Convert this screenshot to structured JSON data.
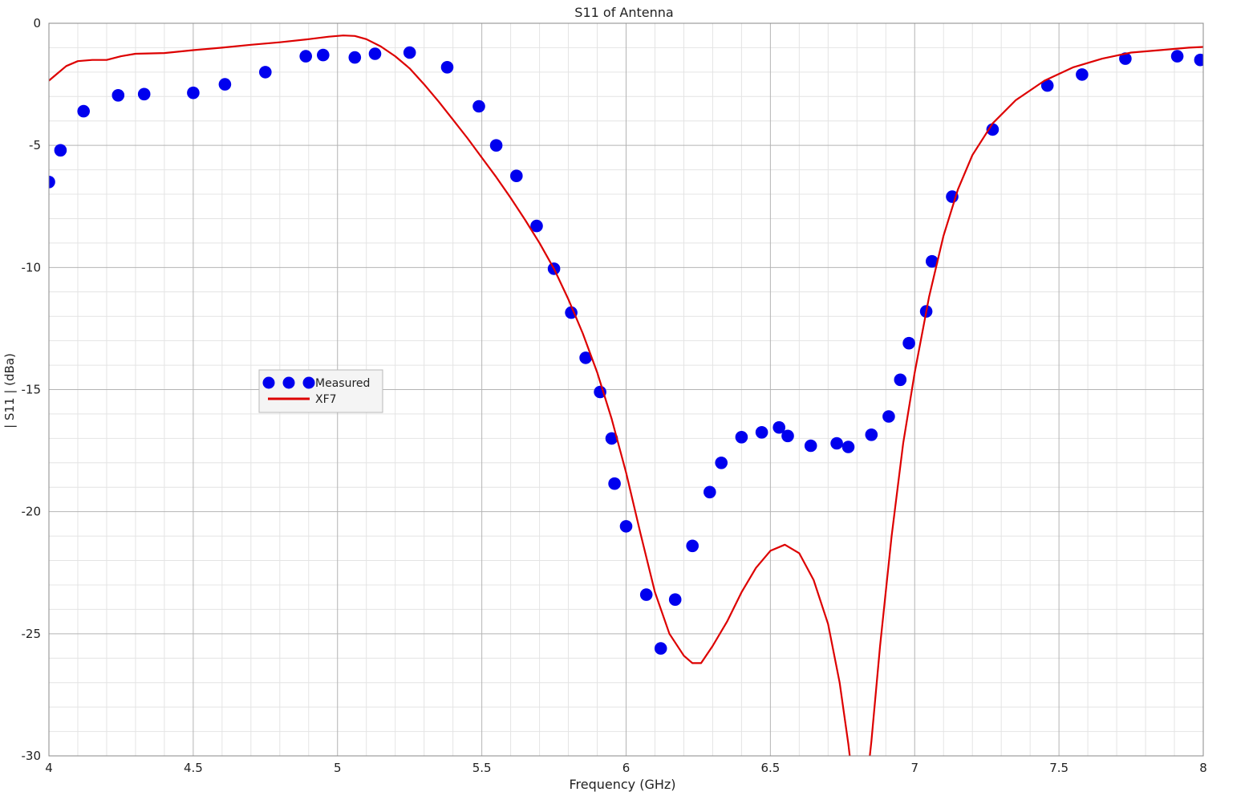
{
  "chart_data": {
    "type": "line",
    "title": "S11 of Antenna",
    "xlabel": "Frequency (GHz)",
    "ylabel": "| S11 | (dBa)",
    "xlim": [
      4,
      8
    ],
    "ylim": [
      -30,
      0
    ],
    "x_ticks": [
      4,
      4.5,
      5,
      5.5,
      6,
      6.5,
      7,
      7.5,
      8
    ],
    "x_tick_labels": [
      "4",
      "4.5",
      "5",
      "5.5",
      "6",
      "6.5",
      "7",
      "7.5",
      "8"
    ],
    "y_ticks": [
      0,
      -5,
      -10,
      -15,
      -20,
      -25,
      -30
    ],
    "y_tick_labels": [
      "0",
      "-5",
      "-10",
      "-15",
      "-20",
      "-25",
      "-30"
    ],
    "grid": true,
    "minor_grid": true,
    "legend_position": "center-left",
    "series": [
      {
        "name": "Measured",
        "style": "markers",
        "color": "#0000ee",
        "points": [
          [
            4.0,
            -6.5
          ],
          [
            4.04,
            -5.2
          ],
          [
            4.12,
            -3.6
          ],
          [
            4.24,
            -2.95
          ],
          [
            4.33,
            -2.9
          ],
          [
            4.5,
            -2.85
          ],
          [
            4.61,
            -2.5
          ],
          [
            4.75,
            -2.0
          ],
          [
            4.89,
            -1.35
          ],
          [
            4.95,
            -1.3
          ],
          [
            5.06,
            -1.4
          ],
          [
            5.13,
            -1.25
          ],
          [
            5.25,
            -1.2
          ],
          [
            5.38,
            -1.8
          ],
          [
            5.49,
            -3.4
          ],
          [
            5.55,
            -5.0
          ],
          [
            5.62,
            -6.25
          ],
          [
            5.69,
            -8.3
          ],
          [
            5.75,
            -10.05
          ],
          [
            5.81,
            -11.85
          ],
          [
            5.86,
            -13.7
          ],
          [
            5.91,
            -15.1
          ],
          [
            5.95,
            -17.0
          ],
          [
            5.96,
            -18.85
          ],
          [
            6.0,
            -20.6
          ],
          [
            6.07,
            -23.4
          ],
          [
            6.12,
            -25.6
          ],
          [
            6.17,
            -23.6
          ],
          [
            6.23,
            -21.4
          ],
          [
            6.29,
            -19.2
          ],
          [
            6.33,
            -18.0
          ],
          [
            6.4,
            -16.95
          ],
          [
            6.47,
            -16.75
          ],
          [
            6.53,
            -16.55
          ],
          [
            6.56,
            -16.9
          ],
          [
            6.64,
            -17.3
          ],
          [
            6.73,
            -17.2
          ],
          [
            6.77,
            -17.35
          ],
          [
            6.85,
            -16.85
          ],
          [
            6.91,
            -16.1
          ],
          [
            6.95,
            -14.6
          ],
          [
            6.98,
            -13.1
          ],
          [
            7.04,
            -11.8
          ],
          [
            7.06,
            -9.75
          ],
          [
            7.13,
            -7.1
          ],
          [
            7.27,
            -4.35
          ],
          [
            7.46,
            -2.55
          ],
          [
            7.58,
            -2.1
          ],
          [
            7.73,
            -1.45
          ],
          [
            7.91,
            -1.35
          ],
          [
            7.99,
            -1.5
          ]
        ]
      },
      {
        "name": "XF7",
        "style": "line",
        "color": "#dd0000",
        "points": [
          [
            4.0,
            -2.35
          ],
          [
            4.03,
            -2.05
          ],
          [
            4.06,
            -1.75
          ],
          [
            4.1,
            -1.55
          ],
          [
            4.15,
            -1.5
          ],
          [
            4.2,
            -1.5
          ],
          [
            4.25,
            -1.35
          ],
          [
            4.3,
            -1.25
          ],
          [
            4.4,
            -1.22
          ],
          [
            4.5,
            -1.1
          ],
          [
            4.6,
            -1.0
          ],
          [
            4.7,
            -0.88
          ],
          [
            4.8,
            -0.78
          ],
          [
            4.9,
            -0.65
          ],
          [
            4.97,
            -0.55
          ],
          [
            5.02,
            -0.5
          ],
          [
            5.06,
            -0.52
          ],
          [
            5.1,
            -0.65
          ],
          [
            5.15,
            -0.95
          ],
          [
            5.2,
            -1.35
          ],
          [
            5.25,
            -1.85
          ],
          [
            5.3,
            -2.5
          ],
          [
            5.35,
            -3.2
          ],
          [
            5.4,
            -3.95
          ],
          [
            5.45,
            -4.7
          ],
          [
            5.5,
            -5.5
          ],
          [
            5.55,
            -6.3
          ],
          [
            5.6,
            -7.15
          ],
          [
            5.65,
            -8.05
          ],
          [
            5.7,
            -9.0
          ],
          [
            5.75,
            -10.05
          ],
          [
            5.8,
            -11.3
          ],
          [
            5.85,
            -12.7
          ],
          [
            5.9,
            -14.3
          ],
          [
            5.95,
            -16.2
          ],
          [
            6.0,
            -18.4
          ],
          [
            6.05,
            -20.9
          ],
          [
            6.1,
            -23.3
          ],
          [
            6.15,
            -25.0
          ],
          [
            6.2,
            -25.9
          ],
          [
            6.23,
            -26.2
          ],
          [
            6.26,
            -26.2
          ],
          [
            6.3,
            -25.5
          ],
          [
            6.35,
            -24.5
          ],
          [
            6.4,
            -23.3
          ],
          [
            6.45,
            -22.3
          ],
          [
            6.5,
            -21.6
          ],
          [
            6.55,
            -21.35
          ],
          [
            6.6,
            -21.7
          ],
          [
            6.65,
            -22.8
          ],
          [
            6.7,
            -24.6
          ],
          [
            6.74,
            -27.0
          ],
          [
            6.77,
            -29.5
          ],
          [
            6.78,
            -30.5
          ],
          [
            6.84,
            -30.5
          ],
          [
            6.85,
            -29.4
          ],
          [
            6.88,
            -25.5
          ],
          [
            6.92,
            -21.0
          ],
          [
            6.96,
            -17.2
          ],
          [
            7.0,
            -14.3
          ],
          [
            7.05,
            -11.2
          ],
          [
            7.1,
            -8.7
          ],
          [
            7.15,
            -6.8
          ],
          [
            7.2,
            -5.4
          ],
          [
            7.27,
            -4.1
          ],
          [
            7.35,
            -3.15
          ],
          [
            7.45,
            -2.35
          ],
          [
            7.55,
            -1.8
          ],
          [
            7.65,
            -1.45
          ],
          [
            7.75,
            -1.2
          ],
          [
            7.85,
            -1.1
          ],
          [
            7.95,
            -1.0
          ],
          [
            8.0,
            -0.97
          ]
        ]
      }
    ]
  }
}
